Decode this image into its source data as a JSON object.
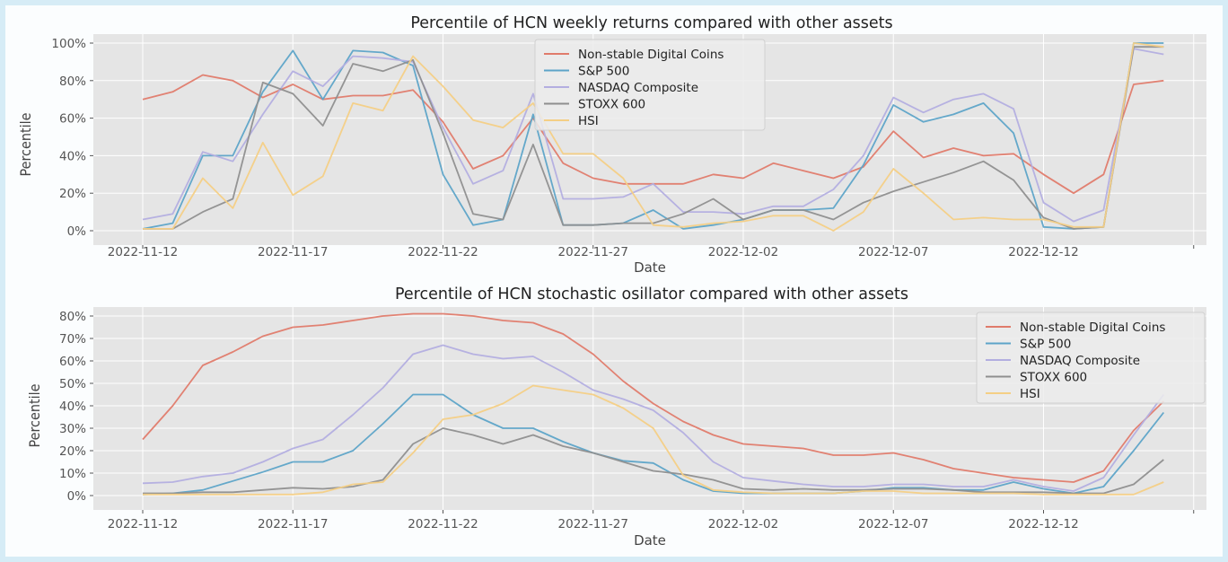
{
  "charts": [
    {
      "title": "Percentile of HCN weekly returns compared with other assets",
      "xlabel": "Date",
      "ylabel": "Percentile",
      "ytick_labels": [
        "0%",
        "20%",
        "40%",
        "60%",
        "80%",
        "100%"
      ],
      "legend_labels": [
        "Non-stable Digital Coins",
        "S&P 500",
        "NASDAQ Composite",
        "STOXX 600",
        "HSI"
      ]
    },
    {
      "title": "Percentile of HCN stochastic osillator compared with other assets",
      "xlabel": "Date",
      "ylabel": "Percentile",
      "ytick_labels": [
        "0%",
        "10%",
        "20%",
        "30%",
        "40%",
        "50%",
        "60%",
        "70%",
        "80%"
      ],
      "legend_labels": [
        "Non-stable Digital Coins",
        "S&P 500",
        "NASDAQ Composite",
        "STOXX 600",
        "HSI"
      ]
    }
  ],
  "xtick_labels": [
    "2022-11-12",
    "2022-11-17",
    "2022-11-22",
    "2022-11-27",
    "2022-12-02",
    "2022-12-07",
    "2022-12-12"
  ],
  "colors": {
    "Non-stable Digital Coins": "#e07b6b",
    "S&P 500": "#5da4c8",
    "NASDAQ Composite": "#b3aee0",
    "STOXX 600": "#8f8f8f",
    "HSI": "#f4cf85",
    "plot_background": "#e5e5e5",
    "page_background": "#d6ecf6"
  },
  "chart_data": [
    {
      "type": "line",
      "title": "Percentile of HCN weekly returns compared with other assets",
      "xlabel": "Date",
      "ylabel": "Percentile",
      "y_unit": "%",
      "ylim": [
        0,
        100
      ],
      "x": [
        "2022-11-12",
        "2022-11-13",
        "2022-11-14",
        "2022-11-15",
        "2022-11-16",
        "2022-11-17",
        "2022-11-18",
        "2022-11-19",
        "2022-11-20",
        "2022-11-21",
        "2022-11-22",
        "2022-11-23",
        "2022-11-24",
        "2022-11-25",
        "2022-11-26",
        "2022-11-27",
        "2022-11-28",
        "2022-11-29",
        "2022-11-30",
        "2022-12-01",
        "2022-12-02",
        "2022-12-03",
        "2022-12-04",
        "2022-12-05",
        "2022-12-06",
        "2022-12-07",
        "2022-12-08",
        "2022-12-09",
        "2022-12-10",
        "2022-12-11",
        "2022-12-12",
        "2022-12-13",
        "2022-12-14",
        "2022-12-15",
        "2022-12-16"
      ],
      "legend_position": "upper center",
      "grid": true,
      "series": [
        {
          "name": "Non-stable Digital Coins",
          "values": [
            70,
            74,
            83,
            80,
            71,
            78,
            70,
            72,
            72,
            75,
            58,
            33,
            40,
            60,
            36,
            28,
            25,
            25,
            25,
            30,
            28,
            36,
            32,
            28,
            34,
            53,
            39,
            44,
            40,
            41,
            30,
            20,
            30,
            78,
            80
          ]
        },
        {
          "name": "S&P 500",
          "values": [
            1,
            4,
            40,
            40,
            74,
            96,
            70,
            96,
            95,
            88,
            30,
            3,
            6,
            62,
            3,
            3,
            4,
            11,
            1,
            3,
            6,
            11,
            11,
            12,
            35,
            67,
            58,
            62,
            68,
            52,
            2,
            1,
            2,
            100,
            100
          ]
        },
        {
          "name": "NASDAQ Composite",
          "values": [
            6,
            9,
            42,
            37,
            62,
            85,
            77,
            93,
            92,
            90,
            55,
            25,
            32,
            73,
            17,
            17,
            18,
            25,
            10,
            10,
            9,
            13,
            13,
            22,
            40,
            71,
            63,
            70,
            73,
            65,
            15,
            5,
            11,
            97,
            94
          ]
        },
        {
          "name": "STOXX 600",
          "values": [
            1,
            1,
            10,
            17,
            79,
            73,
            56,
            89,
            85,
            91,
            52,
            9,
            6,
            46,
            3,
            3,
            4,
            4,
            9,
            17,
            6,
            11,
            11,
            6,
            15,
            21,
            26,
            31,
            37,
            27,
            7,
            1,
            2,
            98,
            98
          ]
        },
        {
          "name": "HSI",
          "values": [
            1,
            1,
            28,
            12,
            47,
            19,
            29,
            68,
            64,
            93,
            77,
            59,
            55,
            68,
            41,
            41,
            28,
            3,
            2,
            4,
            5,
            8,
            8,
            0,
            10,
            33,
            20,
            6,
            7,
            6,
            6,
            2,
            2,
            100,
            98
          ]
        }
      ]
    },
    {
      "type": "line",
      "title": "Percentile of HCN stochastic osillator compared with other assets",
      "xlabel": "Date",
      "ylabel": "Percentile",
      "y_unit": "%",
      "ylim": [
        0,
        80
      ],
      "x": [
        "2022-11-12",
        "2022-11-13",
        "2022-11-14",
        "2022-11-15",
        "2022-11-16",
        "2022-11-17",
        "2022-11-18",
        "2022-11-19",
        "2022-11-20",
        "2022-11-21",
        "2022-11-22",
        "2022-11-23",
        "2022-11-24",
        "2022-11-25",
        "2022-11-26",
        "2022-11-27",
        "2022-11-28",
        "2022-11-29",
        "2022-11-30",
        "2022-12-01",
        "2022-12-02",
        "2022-12-03",
        "2022-12-04",
        "2022-12-05",
        "2022-12-06",
        "2022-12-07",
        "2022-12-08",
        "2022-12-09",
        "2022-12-10",
        "2022-12-11",
        "2022-12-12",
        "2022-12-13",
        "2022-12-14",
        "2022-12-15",
        "2022-12-16"
      ],
      "legend_position": "upper right",
      "grid": true,
      "series": [
        {
          "name": "Non-stable Digital Coins",
          "values": [
            25,
            40,
            58,
            64,
            71,
            75,
            76,
            78,
            80,
            81,
            81,
            80,
            78,
            77,
            72,
            63,
            51,
            41,
            33,
            27,
            23,
            22,
            21,
            18,
            18,
            19,
            16,
            12,
            10,
            8,
            7,
            6,
            11,
            29,
            42
          ]
        },
        {
          "name": "S&P 500",
          "values": [
            0.5,
            1,
            2.5,
            6.5,
            10.5,
            15,
            15,
            20,
            32,
            45,
            45,
            36,
            30,
            30,
            24,
            19,
            15.5,
            14.5,
            7,
            2,
            1,
            1,
            1,
            1,
            2,
            3.5,
            3.5,
            2.5,
            2.5,
            6,
            3,
            1,
            4,
            20,
            37
          ]
        },
        {
          "name": "NASDAQ Composite",
          "values": [
            5.5,
            6,
            8.5,
            10,
            15,
            21,
            25,
            36,
            48,
            63,
            67,
            63,
            61,
            62,
            55,
            47,
            43,
            38,
            28,
            15,
            8,
            6.5,
            5,
            4,
            4,
            5,
            5,
            4,
            4,
            7,
            4,
            2,
            8,
            27,
            45
          ]
        },
        {
          "name": "STOXX 600",
          "values": [
            1,
            1,
            1.5,
            1.5,
            2.5,
            3.5,
            3,
            4,
            7,
            23,
            30,
            27,
            23,
            27,
            22,
            19,
            15,
            11,
            9.5,
            7,
            3,
            2.5,
            3,
            2.5,
            2.5,
            3,
            3,
            2.5,
            1.5,
            1.5,
            1.5,
            1,
            1,
            5,
            16
          ]
        },
        {
          "name": "HSI",
          "values": [
            0.5,
            0.5,
            0.5,
            0.5,
            0.5,
            0.5,
            1.5,
            5,
            6,
            19,
            34,
            36,
            41,
            49,
            47,
            45,
            39,
            30,
            9,
            2.5,
            1.5,
            1,
            1,
            1,
            2,
            2,
            1,
            1,
            1,
            1,
            0.5,
            0.5,
            0.5,
            0.5,
            6
          ]
        }
      ]
    }
  ]
}
